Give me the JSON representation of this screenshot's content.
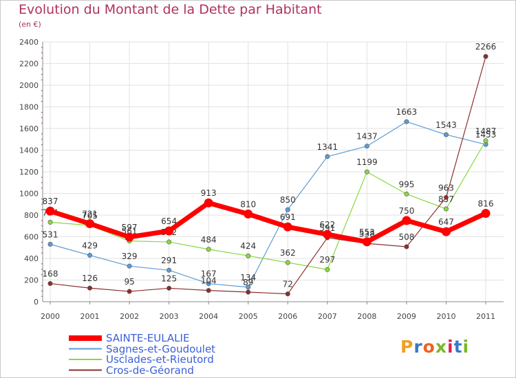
{
  "title": "Evolution du Montant de la Dette par Habitant",
  "subtitle": "(en €)",
  "logo": {
    "text": "Proxiti",
    "colors": [
      "#f0a020",
      "#3a78c8",
      "#f06020",
      "#7ab828",
      "#e02050",
      "#3a78c8",
      "#7ab828"
    ]
  },
  "chart_data": {
    "type": "line",
    "x": [
      "2000",
      "2001",
      "2002",
      "2003",
      "2004",
      "2005",
      "2006",
      "2007",
      "2008",
      "2009",
      "2010",
      "2011"
    ],
    "ylim": [
      0,
      2400
    ],
    "yticks": [
      "0",
      "200",
      "400",
      "600",
      "800",
      "1000",
      "1200",
      "1400",
      "1600",
      "1800",
      "2000",
      "2200",
      "2400"
    ],
    "grid": true,
    "legend_position": "bottom-left",
    "series": [
      {
        "name": "Sagnes-et-Goudoulet",
        "color": "#5b9bd5",
        "width": 1.2,
        "values": [
          531,
          429,
          329,
          291,
          167,
          134,
          850,
          1341,
          1437,
          1663,
          1543,
          1453
        ],
        "labels": [
          "531",
          "429",
          "329",
          "291",
          "167",
          "134",
          "850",
          "1341",
          "1437",
          "1663",
          "1543",
          "1453"
        ]
      },
      {
        "name": "Usclades-et-Rieutord",
        "color": "#88d840",
        "width": 1.2,
        "values": [
          734,
          705,
          561,
          552,
          484,
          424,
          362,
          297,
          1199,
          995,
          857,
          1487
        ],
        "labels": [
          "734",
          "705",
          "561",
          "552",
          "484",
          "424",
          "362",
          "297",
          "1199",
          "995",
          "857",
          "1487"
        ]
      },
      {
        "name": "Cros-de-Géorand",
        "color": "#8b2e2e",
        "width": 1.2,
        "values": [
          168,
          126,
          95,
          125,
          104,
          89,
          72,
          591,
          538,
          508,
          963,
          2266
        ],
        "labels": [
          "168",
          "126",
          "95",
          "125",
          "104",
          "89",
          "72",
          "591",
          "538",
          "508",
          "963",
          "2266"
        ]
      },
      {
        "name": "SAINTE-EULALIE",
        "color": "#ff0000",
        "width": 7,
        "values": [
          837,
          721,
          597,
          654,
          913,
          810,
          691,
          622,
          553,
          750,
          647,
          816
        ],
        "labels": [
          "837",
          "721",
          "597",
          "654",
          "913",
          "810",
          "691",
          "622",
          "553",
          "750",
          "647",
          "816"
        ]
      }
    ],
    "legend_order": [
      "SAINTE-EULALIE",
      "Sagnes-et-Goudoulet",
      "Usclades-et-Rieutord",
      "Cros-de-Géorand"
    ]
  }
}
